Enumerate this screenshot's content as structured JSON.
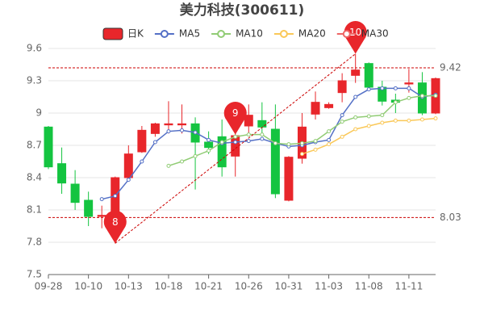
{
  "chart_data": {
    "type": "candlestick",
    "title": "美力科技(300611)",
    "categories": [
      "09-28",
      null,
      null,
      "10-10",
      null,
      null,
      "10-13",
      null,
      null,
      "10-18",
      null,
      null,
      "10-21",
      null,
      null,
      "10-26",
      null,
      null,
      "10-31",
      null,
      null,
      "11-03",
      null,
      null,
      "11-08",
      null,
      null,
      "11-11",
      null,
      null
    ],
    "candles": {
      "name": "日K",
      "up_color": "#e8262b",
      "down_color": "#14c440",
      "open": [
        8.87,
        8.53,
        8.34,
        8.19,
        8.04,
        8.04,
        8.4,
        8.64,
        8.81,
        8.89,
        8.89,
        8.9,
        8.73,
        8.78,
        8.6,
        8.88,
        8.93,
        8.85,
        8.19,
        8.58,
        8.99,
        9.05,
        9.19,
        9.35,
        9.46,
        9.24,
        9.12,
        9.27,
        9.28,
        9.0
      ],
      "close": [
        8.5,
        8.35,
        8.17,
        8.04,
        8.05,
        8.4,
        8.62,
        8.84,
        8.9,
        8.9,
        8.9,
        8.73,
        8.68,
        8.5,
        8.79,
        8.98,
        8.87,
        8.25,
        8.59,
        8.87,
        9.1,
        9.08,
        9.3,
        9.4,
        9.24,
        9.11,
        9.1,
        9.28,
        9.0,
        9.32
      ],
      "high": [
        8.88,
        8.68,
        8.47,
        8.27,
        8.14,
        8.41,
        8.7,
        8.88,
        8.91,
        9.11,
        9.08,
        8.96,
        8.83,
        8.94,
        8.92,
        9.08,
        9.1,
        9.08,
        8.6,
        9.0,
        9.2,
        9.1,
        9.37,
        9.55,
        9.47,
        9.3,
        9.18,
        9.41,
        9.38,
        9.33
      ],
      "low": [
        8.48,
        8.25,
        8.1,
        7.95,
        7.93,
        7.79,
        8.39,
        8.63,
        8.78,
        8.81,
        8.81,
        8.29,
        8.62,
        8.41,
        8.41,
        8.81,
        8.81,
        8.21,
        8.18,
        8.53,
        8.94,
        9.04,
        9.1,
        9.28,
        9.23,
        9.07,
        9.0,
        9.19,
        8.98,
        8.99
      ]
    },
    "series": [
      {
        "name": "MA5",
        "color": "#5470c6",
        "values": [
          null,
          null,
          null,
          null,
          8.2,
          8.23,
          8.38,
          8.55,
          8.73,
          8.83,
          8.84,
          8.82,
          8.75,
          8.72,
          8.73,
          8.74,
          8.76,
          8.72,
          8.69,
          8.7,
          8.73,
          8.75,
          8.98,
          9.15,
          9.22,
          9.23,
          9.23,
          9.23,
          9.15,
          9.17
        ]
      },
      {
        "name": "MA10",
        "color": "#91cc75",
        "values": [
          null,
          null,
          null,
          null,
          null,
          null,
          null,
          null,
          null,
          8.51,
          8.55,
          8.6,
          8.65,
          8.73,
          8.78,
          8.8,
          8.8,
          8.72,
          8.71,
          8.72,
          8.74,
          8.83,
          8.92,
          8.96,
          8.97,
          8.98,
          9.1,
          9.14,
          9.16,
          9.16
        ]
      },
      {
        "name": "MA20",
        "color": "#fac858",
        "values": [
          null,
          null,
          null,
          null,
          null,
          null,
          null,
          null,
          null,
          null,
          null,
          null,
          null,
          null,
          null,
          null,
          null,
          null,
          null,
          8.62,
          8.66,
          8.71,
          8.78,
          8.85,
          8.88,
          8.91,
          8.93,
          8.93,
          8.94,
          8.95
        ]
      },
      {
        "name": "MA30",
        "color": "#ee6666",
        "values": [
          null,
          null,
          null,
          null,
          null,
          null,
          null,
          null,
          null,
          null,
          null,
          null,
          null,
          null,
          null,
          null,
          null,
          null,
          null,
          null,
          null,
          null,
          null,
          null,
          null,
          null,
          null,
          null,
          null,
          null
        ]
      }
    ],
    "ylim": [
      7.5,
      9.6
    ],
    "yticks": [
      7.5,
      7.8,
      8.1,
      8.4,
      8.7,
      {
        "value": 9,
        "label": "9"
      },
      9.3,
      9.6
    ],
    "grid": true,
    "ref_lines": [
      {
        "value": 9.42,
        "label": "9.42"
      },
      {
        "value": 8.03,
        "label": "8.03"
      }
    ],
    "pins": [
      {
        "label": "8",
        "index": 5,
        "value": 7.79
      },
      {
        "label": "9",
        "index": 14,
        "value": 8.8
      },
      {
        "label": "10",
        "index": 23,
        "value": 9.55
      }
    ]
  }
}
